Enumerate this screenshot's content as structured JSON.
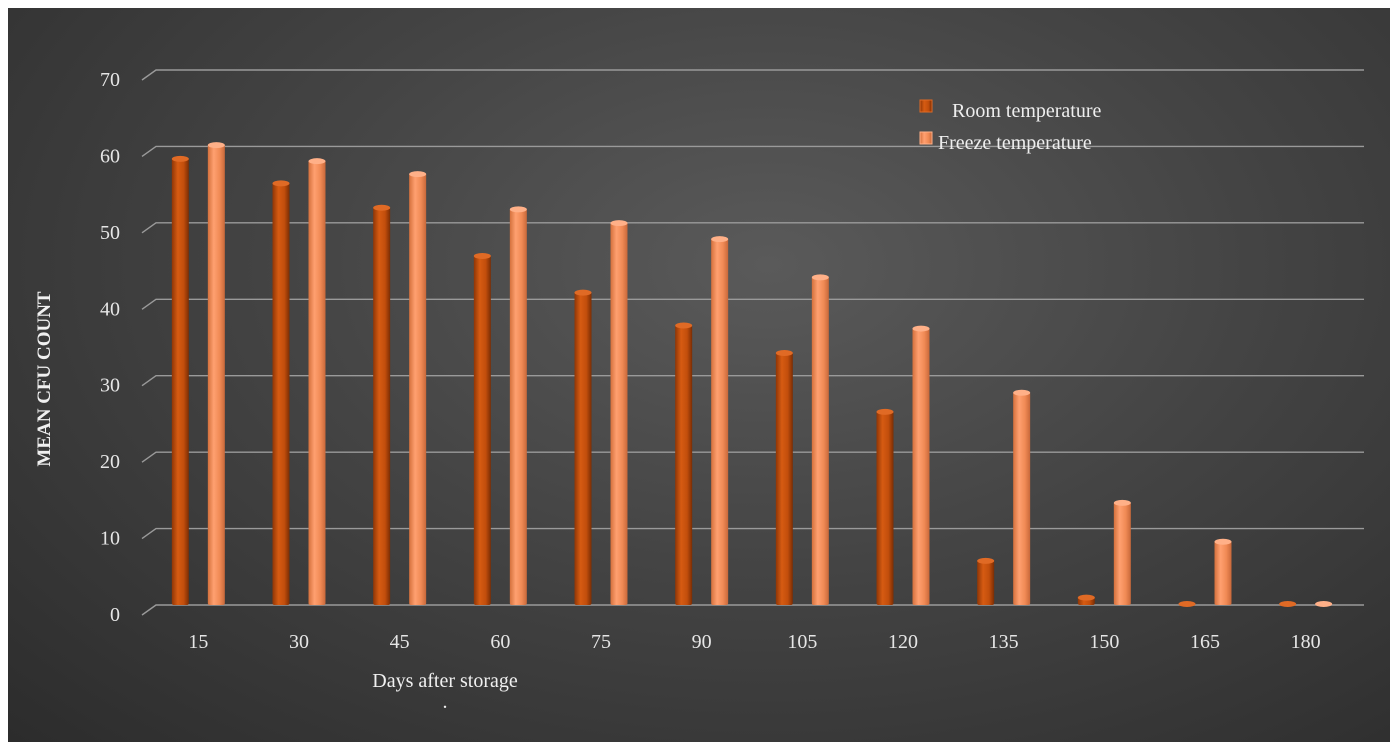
{
  "chart_data": {
    "type": "bar",
    "title": "",
    "xlabel": "Days after storage",
    "xlabel_note": ".",
    "ylabel": "MEAN CFU COUNT",
    "ylim": [
      0,
      70
    ],
    "yticks": [
      0,
      10,
      20,
      30,
      40,
      50,
      60,
      70
    ],
    "grid": true,
    "legend_position": "top-right",
    "categories": [
      "15",
      "30",
      "45",
      "60",
      "75",
      "90",
      "105",
      "120",
      "135",
      "150",
      "165",
      "180"
    ],
    "series": [
      {
        "name": "Room temperature",
        "color": "#c24e0c",
        "values": [
          58.5,
          55.3,
          52.1,
          45.8,
          41.0,
          36.7,
          33.1,
          25.4,
          5.9,
          1.1,
          0,
          0
        ]
      },
      {
        "name": "Freeze temperature",
        "color": "#f08a55",
        "values": [
          60.3,
          58.2,
          56.5,
          51.9,
          50.1,
          48.0,
          43.0,
          36.3,
          27.9,
          13.5,
          8.4,
          0
        ]
      }
    ]
  }
}
